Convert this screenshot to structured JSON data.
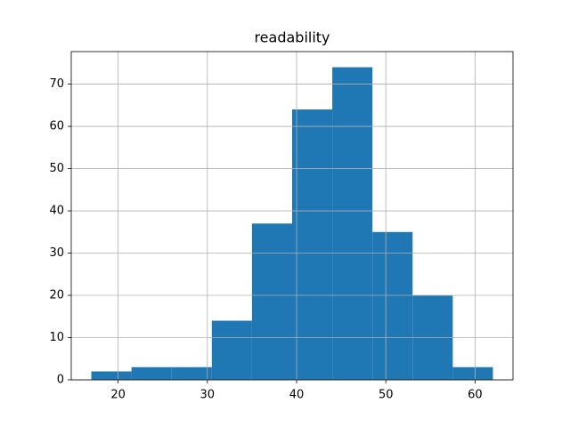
{
  "chart_data": {
    "type": "histogram",
    "title": "readability",
    "bins": [
      17,
      21.5,
      26,
      30.5,
      35,
      39.5,
      44,
      48.5,
      53,
      57.5,
      62
    ],
    "values": [
      2,
      3,
      3,
      14,
      37,
      64,
      74,
      35,
      20,
      3
    ],
    "color": "#1f77b4",
    "xlim": [
      14.75,
      64.25
    ],
    "xticks": [
      20,
      30,
      40,
      50,
      60
    ],
    "ylim": [
      0,
      77.7
    ],
    "yticks": [
      0,
      10,
      20,
      30,
      40,
      50,
      60,
      70
    ],
    "grid": true
  }
}
